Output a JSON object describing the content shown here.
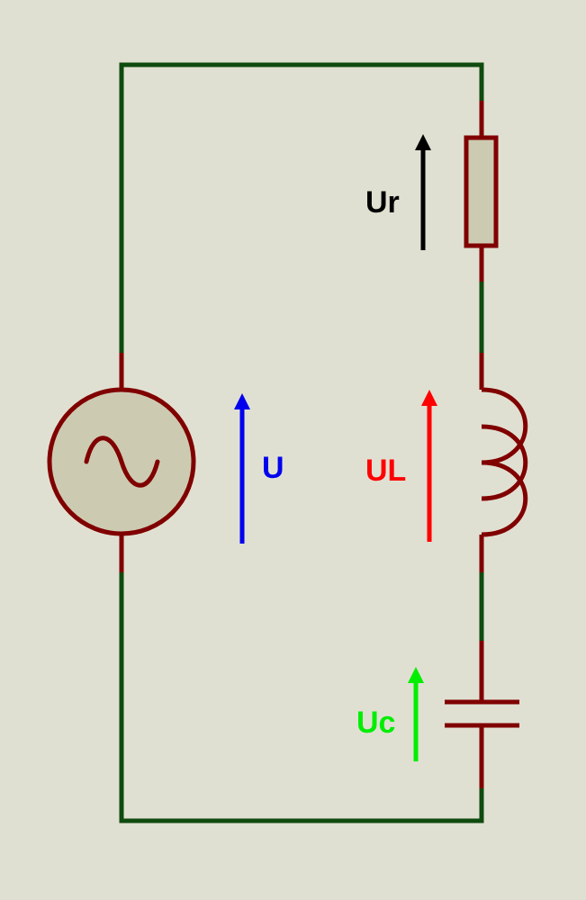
{
  "colors": {
    "background": "#e0e0d2",
    "wire": "#0f4a0f",
    "component": "#800000",
    "component_fill": "#cccbb2",
    "voltage_u": "#0000ee",
    "voltage_ur": "#000000",
    "voltage_ul": "#ff0000",
    "voltage_uc": "#00ee00"
  },
  "components": {
    "source": {
      "icon": "ac-source-icon"
    },
    "resistor": {
      "icon": "resistor-icon"
    },
    "inductor": {
      "icon": "inductor-icon"
    },
    "capacitor": {
      "icon": "capacitor-icon"
    }
  },
  "voltages": {
    "source": "U",
    "resistor": "Ur",
    "inductor": "UL",
    "capacitor": "Uc"
  }
}
